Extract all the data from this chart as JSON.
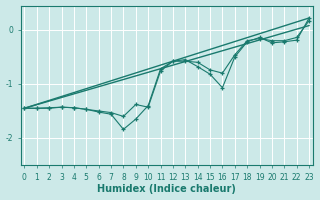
{
  "title": "",
  "xlabel": "Humidex (Indice chaleur)",
  "background_color": "#cce9e8",
  "grid_color": "#ffffff",
  "line_color": "#1a7a6e",
  "x": [
    0,
    1,
    2,
    3,
    4,
    5,
    6,
    7,
    8,
    9,
    10,
    11,
    12,
    13,
    14,
    15,
    16,
    17,
    18,
    19,
    20,
    21,
    22,
    23
  ],
  "line1": [
    -1.45,
    -1.45,
    -1.45,
    -1.43,
    -1.44,
    -1.47,
    -1.52,
    -1.56,
    -1.84,
    -1.65,
    -1.4,
    -0.72,
    -0.58,
    -0.55,
    -0.68,
    -0.82,
    -1.07,
    -0.5,
    -0.22,
    -0.14,
    -0.24,
    -0.22,
    -0.19,
    0.22
  ],
  "line2": [
    -1.45,
    -1.45,
    -1.44,
    -1.43,
    -1.44,
    -1.47,
    -1.5,
    -1.53,
    -1.6,
    -1.38,
    -1.43,
    -0.76,
    -0.58,
    -0.58,
    -0.6,
    -0.74,
    -0.8,
    -0.46,
    -0.2,
    -0.16,
    -0.2,
    -0.2,
    -0.14,
    0.17
  ],
  "straight1": [
    [
      -1.45,
      0.22
    ]
  ],
  "straight2": [
    [
      -1.45,
      0.08
    ]
  ],
  "ylim": [
    -2.5,
    0.45
  ],
  "xlim": [
    -0.3,
    23.3
  ],
  "yticks": [
    0,
    -1,
    -2
  ],
  "xticks": [
    0,
    1,
    2,
    3,
    4,
    5,
    6,
    7,
    8,
    9,
    10,
    11,
    12,
    13,
    14,
    15,
    16,
    17,
    18,
    19,
    20,
    21,
    22,
    23
  ]
}
